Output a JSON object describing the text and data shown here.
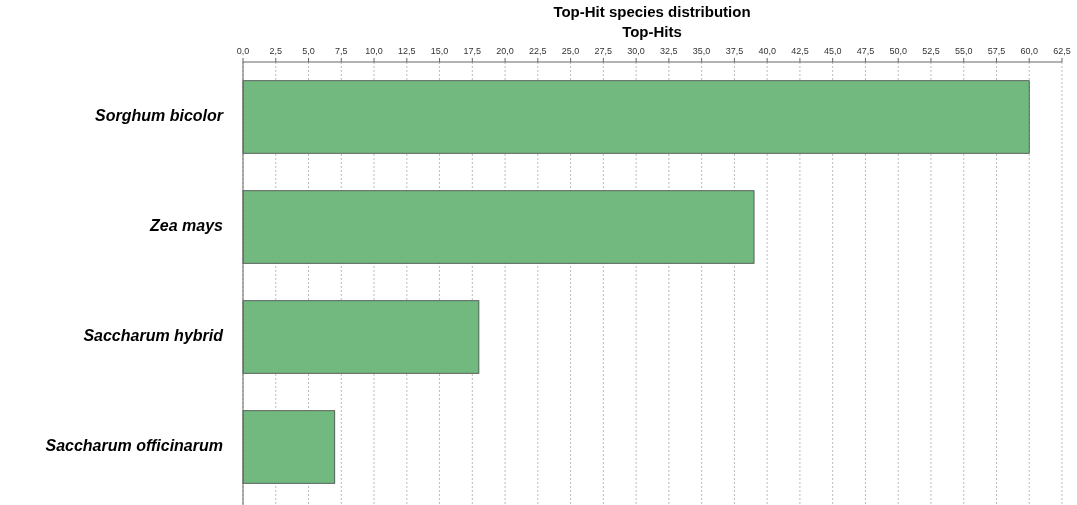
{
  "chart_data": {
    "type": "bar",
    "orientation": "horizontal",
    "title": "Top-Hit species distribution",
    "subtitle": "Top-Hits",
    "categories": [
      "Sorghum bicolor",
      "Zea mays",
      "Saccharum hybrid",
      "Saccharum officinarum"
    ],
    "values": [
      60,
      39,
      18,
      7
    ],
    "color": "#71b97f",
    "xlim": [
      0,
      62.5
    ],
    "xticks": [
      {
        "value": 0,
        "label": "0,0"
      },
      {
        "value": 2.5,
        "label": "2,5"
      },
      {
        "value": 5,
        "label": "5,0"
      },
      {
        "value": 7.5,
        "label": "7,5"
      },
      {
        "value": 10,
        "label": "10,0"
      },
      {
        "value": 12.5,
        "label": "12,5"
      },
      {
        "value": 15,
        "label": "15,0"
      },
      {
        "value": 17.5,
        "label": "17,5"
      },
      {
        "value": 20,
        "label": "20,0"
      },
      {
        "value": 22.5,
        "label": "22,5"
      },
      {
        "value": 25,
        "label": "25,0"
      },
      {
        "value": 27.5,
        "label": "27,5"
      },
      {
        "value": 30,
        "label": "30,0"
      },
      {
        "value": 32.5,
        "label": "32,5"
      },
      {
        "value": 35,
        "label": "35,0"
      },
      {
        "value": 37.5,
        "label": "37,5"
      },
      {
        "value": 40,
        "label": "40,0"
      },
      {
        "value": 42.5,
        "label": "42,5"
      },
      {
        "value": 45,
        "label": "45,0"
      },
      {
        "value": 47.5,
        "label": "47,5"
      },
      {
        "value": 50,
        "label": "50,0"
      },
      {
        "value": 52.5,
        "label": "52,5"
      },
      {
        "value": 55,
        "label": "55,0"
      },
      {
        "value": 57.5,
        "label": "57,5"
      },
      {
        "value": 60,
        "label": "60,0"
      },
      {
        "value": 62.5,
        "label": "62,5"
      }
    ],
    "grid": "x"
  }
}
